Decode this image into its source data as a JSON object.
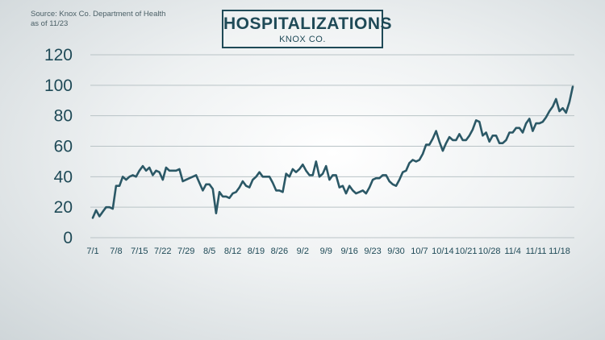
{
  "header": {
    "source_line1": "Source: Knox Co. Department of Health",
    "source_line2": "as of 11/23",
    "title": "HOSPITALIZATIONS",
    "subtitle": "KNOX CO."
  },
  "colors": {
    "line": "#2b5866",
    "grid": "#b9c3c6",
    "text": "#1f4a57"
  },
  "chart_data": {
    "type": "line",
    "title": "HOSPITALIZATIONS",
    "subtitle": "KNOX CO.",
    "xlabel": "",
    "ylabel": "",
    "ylim": [
      0,
      120
    ],
    "yticks": [
      0,
      20,
      40,
      60,
      80,
      100,
      120
    ],
    "grid": "horizontal",
    "legend": "none",
    "x_tick_labels": [
      "7/1",
      "7/8",
      "7/15",
      "7/22",
      "7/29",
      "8/5",
      "8/12",
      "8/19",
      "8/26",
      "9/2",
      "9/9",
      "9/16",
      "9/23",
      "9/30",
      "10/7",
      "10/14",
      "10/21",
      "10/28",
      "11/4",
      "11/11",
      "11/18"
    ],
    "series": [
      {
        "start": "7/1",
        "values": [
          13,
          18,
          14,
          17,
          20,
          20,
          19,
          34,
          34,
          40,
          38,
          40,
          41,
          40,
          44,
          47,
          44,
          46,
          41,
          44,
          43,
          38,
          46,
          44,
          44,
          44,
          45,
          37,
          38,
          39,
          40,
          41,
          36,
          31,
          35,
          35,
          32,
          16,
          30,
          27,
          27,
          26,
          29,
          30,
          33,
          37,
          34,
          33,
          38,
          40,
          43,
          40,
          40,
          40,
          36,
          31,
          31,
          30,
          42,
          40,
          45,
          43,
          45,
          48,
          44,
          41,
          41,
          50,
          40,
          42,
          47,
          38,
          41,
          41,
          33,
          34,
          29,
          34,
          31,
          29,
          30,
          31,
          29,
          33,
          38,
          39,
          39,
          41,
          41,
          37,
          35,
          34,
          38,
          43,
          44,
          49,
          51,
          50,
          51,
          55,
          61,
          61,
          65,
          70,
          63,
          57,
          62,
          66,
          64,
          64,
          68,
          64,
          64,
          67,
          71,
          77,
          76,
          67,
          69,
          63,
          67,
          67,
          62,
          62,
          64,
          69,
          69,
          72,
          72,
          69,
          75,
          78,
          70,
          75,
          75,
          76,
          79,
          83,
          86,
          91,
          83,
          85,
          82,
          89,
          99
        ]
      }
    ]
  }
}
